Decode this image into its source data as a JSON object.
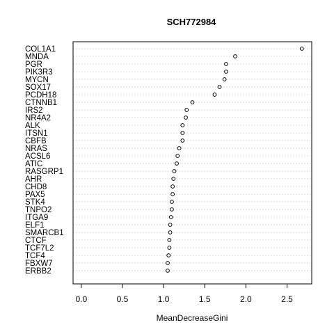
{
  "chart_data": {
    "type": "scatter",
    "title": "SCH772984",
    "xlabel": "MeanDecreaseGini",
    "ylabel": "",
    "xlim": [
      -0.1,
      2.8
    ],
    "xticks": [
      "0.0",
      "0.5",
      "1.0",
      "1.5",
      "2.0",
      "2.5"
    ],
    "grid": true,
    "legend": "none",
    "categories": [
      "COL1A1",
      "MNDA",
      "PGR",
      "PIK3R3",
      "MYCN",
      "SOX17",
      "PCDH18",
      "CTNNB1",
      "IRS2",
      "NR4A2",
      "ALK",
      "ITSN1",
      "CBFB",
      "NRAS",
      "ACSL6",
      "ATIC",
      "RASGRP1",
      "AHR",
      "CHD8",
      "PAX5",
      "STK4",
      "TNPO2",
      "ITGA9",
      "ELF1",
      "SMARCB1",
      "CTCF",
      "TCF7L2",
      "TCF4",
      "FBXW7",
      "ERBB2"
    ],
    "values": [
      2.68,
      1.87,
      1.76,
      1.76,
      1.74,
      1.68,
      1.62,
      1.35,
      1.28,
      1.27,
      1.23,
      1.23,
      1.23,
      1.19,
      1.17,
      1.16,
      1.13,
      1.12,
      1.11,
      1.11,
      1.1,
      1.1,
      1.09,
      1.08,
      1.08,
      1.07,
      1.07,
      1.06,
      1.05,
      1.05
    ]
  }
}
